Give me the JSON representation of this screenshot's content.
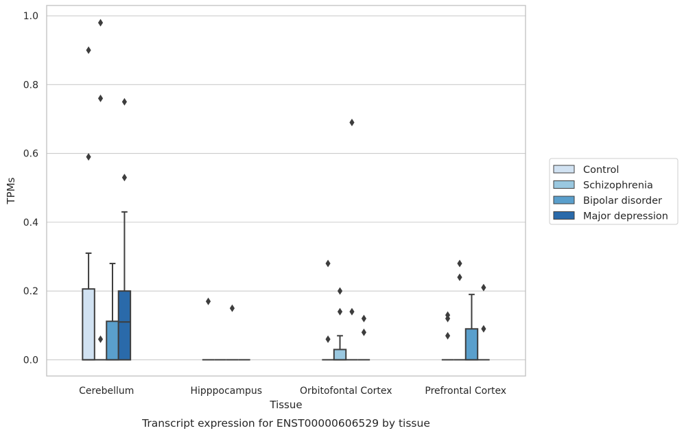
{
  "chart_data": {
    "type": "box",
    "caption": "Transcript expression for ENST00000606529 by tissue",
    "xlabel": "Tissue",
    "ylabel": "TPMs",
    "ylim": [
      -0.047,
      1.03
    ],
    "y_ticks": [
      0.0,
      0.2,
      0.4,
      0.6,
      0.8,
      1.0
    ],
    "y_tick_labels": [
      "0.0",
      "0.2",
      "0.4",
      "0.6",
      "0.8",
      "1.0"
    ],
    "grid": "horizontal",
    "legend_position": "right",
    "categories": [
      "Cerebellum",
      "Hipppocampus",
      "Orbitofontal Cortex",
      "Prefrontal Cortex"
    ],
    "series": [
      {
        "name": "Control",
        "color": "#d1e2f2",
        "boxes": [
          {
            "q1": 0.0,
            "median": 0.0,
            "q3": 0.206,
            "whisker_low": 0.0,
            "whisker_high": 0.31,
            "outliers": [
              0.59,
              0.9
            ]
          },
          {
            "q1": 0.0,
            "median": 0.0,
            "q3": 0.0,
            "whisker_low": 0.0,
            "whisker_high": 0.0,
            "outliers": [
              0.17
            ]
          },
          {
            "q1": 0.0,
            "median": 0.0,
            "q3": 0.0,
            "whisker_low": 0.0,
            "whisker_high": 0.0,
            "outliers": [
              0.06,
              0.28
            ]
          },
          {
            "q1": 0.0,
            "median": 0.0,
            "q3": 0.0,
            "whisker_low": 0.0,
            "whisker_high": 0.0,
            "outliers": [
              0.07,
              0.12,
              0.13
            ]
          }
        ]
      },
      {
        "name": "Schizophrenia",
        "color": "#9ac8e0",
        "boxes": [
          {
            "q1": 0.0,
            "median": 0.0,
            "q3": 0.0,
            "whisker_low": 0.0,
            "whisker_high": 0.0,
            "outliers": [
              0.06,
              0.76,
              0.98
            ]
          },
          {
            "q1": 0.0,
            "median": 0.0,
            "q3": 0.0,
            "whisker_low": 0.0,
            "whisker_high": 0.0,
            "outliers": []
          },
          {
            "q1": 0.0,
            "median": 0.0,
            "q3": 0.03,
            "whisker_low": 0.0,
            "whisker_high": 0.07,
            "outliers": [
              0.14,
              0.2
            ]
          },
          {
            "q1": 0.0,
            "median": 0.0,
            "q3": 0.0,
            "whisker_low": 0.0,
            "whisker_high": 0.0,
            "outliers": [
              0.24,
              0.28
            ]
          }
        ]
      },
      {
        "name": "Bipolar disorder",
        "color": "#5a9fcc",
        "boxes": [
          {
            "q1": 0.0,
            "median": 0.0,
            "q3": 0.112,
            "whisker_low": 0.0,
            "whisker_high": 0.28,
            "outliers": []
          },
          {
            "q1": 0.0,
            "median": 0.0,
            "q3": 0.0,
            "whisker_low": 0.0,
            "whisker_high": 0.0,
            "outliers": [
              0.15
            ]
          },
          {
            "q1": 0.0,
            "median": 0.0,
            "q3": 0.0,
            "whisker_low": 0.0,
            "whisker_high": 0.0,
            "outliers": [
              0.14,
              0.69
            ]
          },
          {
            "q1": 0.0,
            "median": 0.0,
            "q3": 0.09,
            "whisker_low": 0.0,
            "whisker_high": 0.19,
            "outliers": []
          }
        ]
      },
      {
        "name": "Major depression",
        "color": "#2a6aaa",
        "boxes": [
          {
            "q1": 0.0,
            "median": 0.11,
            "q3": 0.2,
            "whisker_low": 0.0,
            "whisker_high": 0.43,
            "outliers": [
              0.53,
              0.75
            ]
          },
          {
            "q1": 0.0,
            "median": 0.0,
            "q3": 0.0,
            "whisker_low": 0.0,
            "whisker_high": 0.0,
            "outliers": []
          },
          {
            "q1": 0.0,
            "median": 0.0,
            "q3": 0.0,
            "whisker_low": 0.0,
            "whisker_high": 0.0,
            "outliers": [
              0.08,
              0.12
            ]
          },
          {
            "q1": 0.0,
            "median": 0.0,
            "q3": 0.0,
            "whisker_low": 0.0,
            "whisker_high": 0.0,
            "outliers": [
              0.09,
              0.21
            ]
          }
        ]
      }
    ],
    "colors": {
      "grid": "#cccccc",
      "frame": "#bfbfbf",
      "line": "#3d3d3d"
    }
  }
}
